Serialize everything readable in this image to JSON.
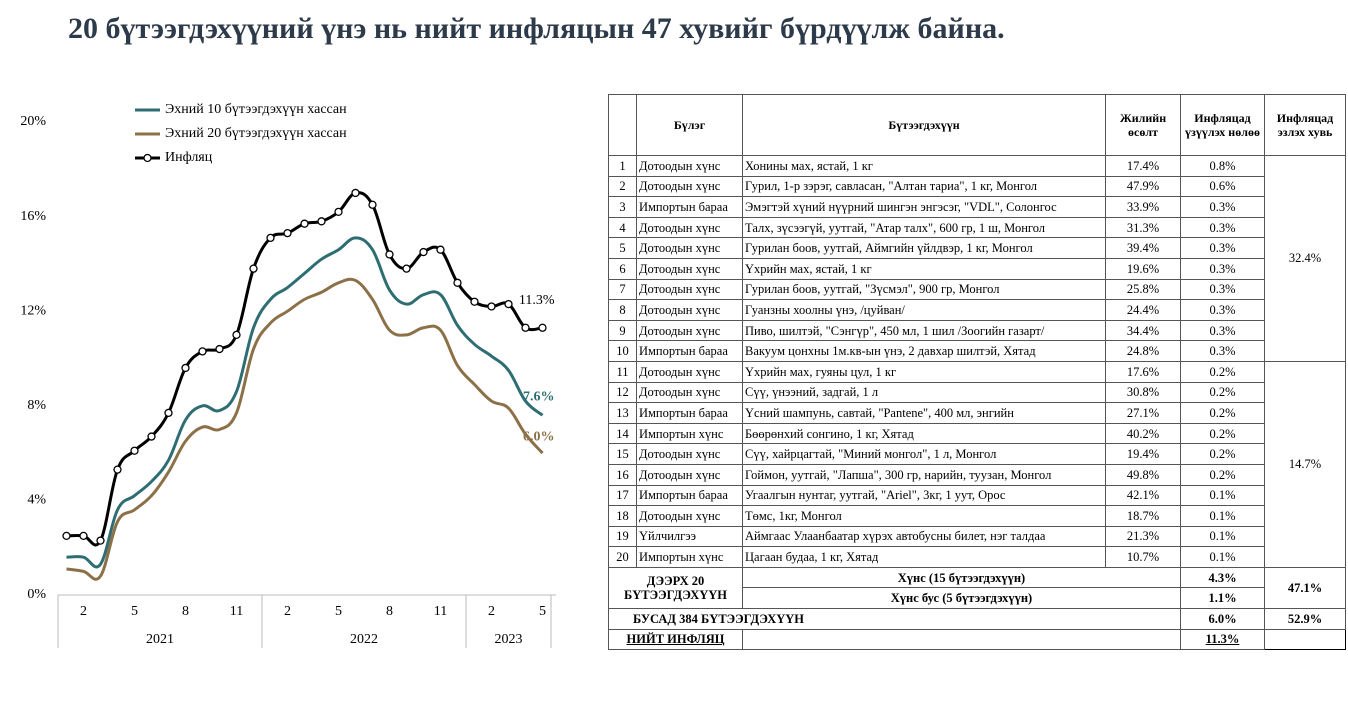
{
  "title": "20 бүтээгдэхүүний үнэ нь нийт инфляцын 47 хувийг бүрдүүлж байна.",
  "chart_data": {
    "type": "line",
    "categories": [
      null,
      2,
      null,
      null,
      5,
      null,
      null,
      8,
      null,
      null,
      11,
      null,
      null,
      2,
      null,
      null,
      5,
      null,
      null,
      8,
      null,
      null,
      11,
      null,
      null,
      2,
      null,
      null,
      5
    ],
    "x_groups": [
      {
        "label": "2021",
        "span": 12
      },
      {
        "label": "2022",
        "span": 12
      },
      {
        "label": "2023",
        "span": 5
      }
    ],
    "series": [
      {
        "name": "Эхний 10 бүтээгдэхүүн хассан",
        "color": "#2e6e73",
        "values": [
          1.6,
          1.6,
          1.3,
          3.6,
          4.2,
          4.8,
          5.7,
          7.4,
          8.0,
          7.8,
          8.6,
          11.3,
          12.5,
          13.0,
          13.6,
          14.2,
          14.6,
          15.1,
          14.6,
          12.9,
          12.3,
          12.7,
          12.7,
          11.4,
          10.6,
          10.1,
          9.5,
          8.2,
          7.6
        ],
        "value_labels": [
          null,
          null,
          null,
          null,
          null,
          null,
          null,
          null,
          null,
          null,
          null,
          null,
          null,
          null,
          null,
          null,
          null,
          null,
          null,
          null,
          null,
          null,
          null,
          null,
          null,
          null,
          null,
          null,
          "7.6%"
        ]
      },
      {
        "name": "Эхний 20 бүтээгдэхүүн хассан",
        "color": "#8c7048",
        "values": [
          1.1,
          1.0,
          0.8,
          3.1,
          3.6,
          4.2,
          5.2,
          6.5,
          7.1,
          7.0,
          7.7,
          10.4,
          11.5,
          12.0,
          12.5,
          12.8,
          13.2,
          13.3,
          12.5,
          11.2,
          11.0,
          11.3,
          11.2,
          9.7,
          8.9,
          8.2,
          7.9,
          6.8,
          6.0
        ],
        "value_labels": [
          null,
          null,
          null,
          null,
          null,
          null,
          null,
          null,
          null,
          null,
          null,
          null,
          null,
          null,
          null,
          null,
          null,
          null,
          null,
          null,
          null,
          null,
          null,
          null,
          null,
          null,
          null,
          null,
          "6.0%"
        ]
      },
      {
        "name": "Инфляц",
        "color": "#000000",
        "markers": true,
        "values": [
          2.5,
          2.5,
          2.3,
          5.3,
          6.1,
          6.7,
          7.7,
          9.6,
          10.3,
          10.4,
          11.0,
          13.8,
          15.1,
          15.3,
          15.7,
          15.8,
          16.2,
          17.0,
          16.5,
          14.4,
          13.8,
          14.5,
          14.6,
          13.2,
          12.4,
          12.2,
          12.3,
          11.3,
          11.3
        ],
        "value_labels": [
          null,
          null,
          null,
          null,
          null,
          null,
          null,
          null,
          null,
          null,
          null,
          null,
          null,
          null,
          null,
          null,
          null,
          null,
          null,
          null,
          null,
          null,
          null,
          null,
          null,
          null,
          null,
          null,
          "11.3%"
        ]
      }
    ],
    "ylim": [
      0,
      20
    ],
    "yticks": [
      {
        "value": 0,
        "label": "0%"
      },
      {
        "value": 4,
        "label": "4%"
      },
      {
        "value": 8,
        "label": "8%"
      },
      {
        "value": 12,
        "label": "12%"
      },
      {
        "value": 16,
        "label": "16%"
      },
      {
        "value": 20,
        "label": "20%"
      }
    ],
    "grid": false,
    "legend": "top-left"
  },
  "table": {
    "header": [
      "Бүлэг",
      "Бүтээгдэхүүн",
      "Жилийн өсөлт",
      "Инфляцад үзүүлэх нөлөө",
      "Инфляцад эзлэх хувь"
    ],
    "rows": [
      [
        1,
        "Дотоодын хүнс",
        "Хонины мах, ястай, 1 кг",
        "17.4%",
        "0.8%"
      ],
      [
        2,
        "Дотоодын хүнс",
        "Гурил, 1-р зэрэг, савласан,  \"Алтан тариа\", 1 кг, Монгол",
        "47.9%",
        "0.6%"
      ],
      [
        3,
        "Импортын бараа",
        "Эмэгтэй хүний нүүрний шингэн энгэсэг, \"VDL\", Солонгос",
        "33.9%",
        "0.3%"
      ],
      [
        4,
        "Дотоодын хүнс",
        "Талх, зүсээгүй, уутгай, \"Атар талх\", 600 гр, 1 ш, Монгол",
        "31.3%",
        "0.3%"
      ],
      [
        5,
        "Дотоодын хүнс",
        "Гурилан боов, уутгай, Аймгийн үйлдвэр, 1 кг, Монгол",
        "39.4%",
        "0.3%"
      ],
      [
        6,
        "Дотоодын хүнс",
        "Үхрийн мах, ястай, 1 кг",
        "19.6%",
        "0.3%"
      ],
      [
        7,
        "Дотоодын хүнс",
        "Гурилан боов, уутгай, \"Зүсмэл\", 900 гр, Монгол",
        "25.8%",
        "0.3%"
      ],
      [
        8,
        "Дотоодын хүнс",
        "Гуанзны хоолны үнэ, /цуйван/",
        "24.4%",
        "0.3%"
      ],
      [
        9,
        "Дотоодын хүнс",
        "Пиво, шилтэй, \"Сэнгүр\", 450 мл, 1 шил /Зоогийн газарт/",
        "34.4%",
        "0.3%"
      ],
      [
        10,
        "Импортын бараа",
        "Вакуум цонхны 1м.кв-ын үнэ,  2 давхар шилтэй, Хятад",
        "24.8%",
        "0.3%"
      ],
      [
        11,
        "Дотоодын хүнс",
        "Үхрийн мах, гуяны цул, 1 кг",
        "17.6%",
        "0.2%"
      ],
      [
        12,
        "Дотоодын хүнс",
        "Сүү, үнээний, задгай, 1 л",
        "30.8%",
        "0.2%"
      ],
      [
        13,
        "Импортын бараа",
        "Үсний шампунь, савтай, \"Pantene\", 400 мл, энгийн",
        "27.1%",
        "0.2%"
      ],
      [
        14,
        "Импортын хүнс",
        "Бөөрөнхий сонгино, 1 кг, Хятад",
        "40.2%",
        "0.2%"
      ],
      [
        15,
        "Дотоодын хүнс",
        "Сүү, хайрцагтай, \"Миний монгол\", 1 л, Монгол",
        "19.4%",
        "0.2%"
      ],
      [
        16,
        "Дотоодын хүнс",
        "Гоймон, уутгай, \"Лапша\", 300 гр, нарийн, туузан, Монгол",
        "49.8%",
        "0.2%"
      ],
      [
        17,
        "Импортын бараа",
        "Угаалгын нунтаг, уутгай, \"Ariel\", 3кг, 1 уут, Орос",
        "42.1%",
        "0.1%"
      ],
      [
        18,
        "Дотоодын хүнс",
        "Төмс, 1кг, Монгол",
        "18.7%",
        "0.1%"
      ],
      [
        19,
        "Үйлчилгээ",
        "Аймгаас Улаанбаатар хүрэх автобусны билет, нэг талдаа",
        "21.3%",
        "0.1%"
      ],
      [
        20,
        "Импортын хүнс",
        "Цагаан будаа, 1 кг, Хятад",
        "10.7%",
        "0.1%"
      ]
    ],
    "shares": [
      "32.4%",
      "14.7%"
    ],
    "top20": {
      "label": "ДЭЭРХ 20 БҮТЭЭГДЭХҮҮН",
      "rows": [
        [
          "Хүнс (15 бүтээгдэхүүн)",
          "4.3%"
        ],
        [
          "Хүнс бус (5 бүтээгдэхүүн)",
          "1.1%"
        ]
      ],
      "share": "47.1%"
    },
    "other": {
      "label": "БУСАД 384 БҮТЭЭГДЭХҮҮН",
      "value": "6.0%",
      "share": "52.9%"
    },
    "total": {
      "label": "НИЙТ ИНФЛЯЦ",
      "value": "11.3%"
    }
  }
}
